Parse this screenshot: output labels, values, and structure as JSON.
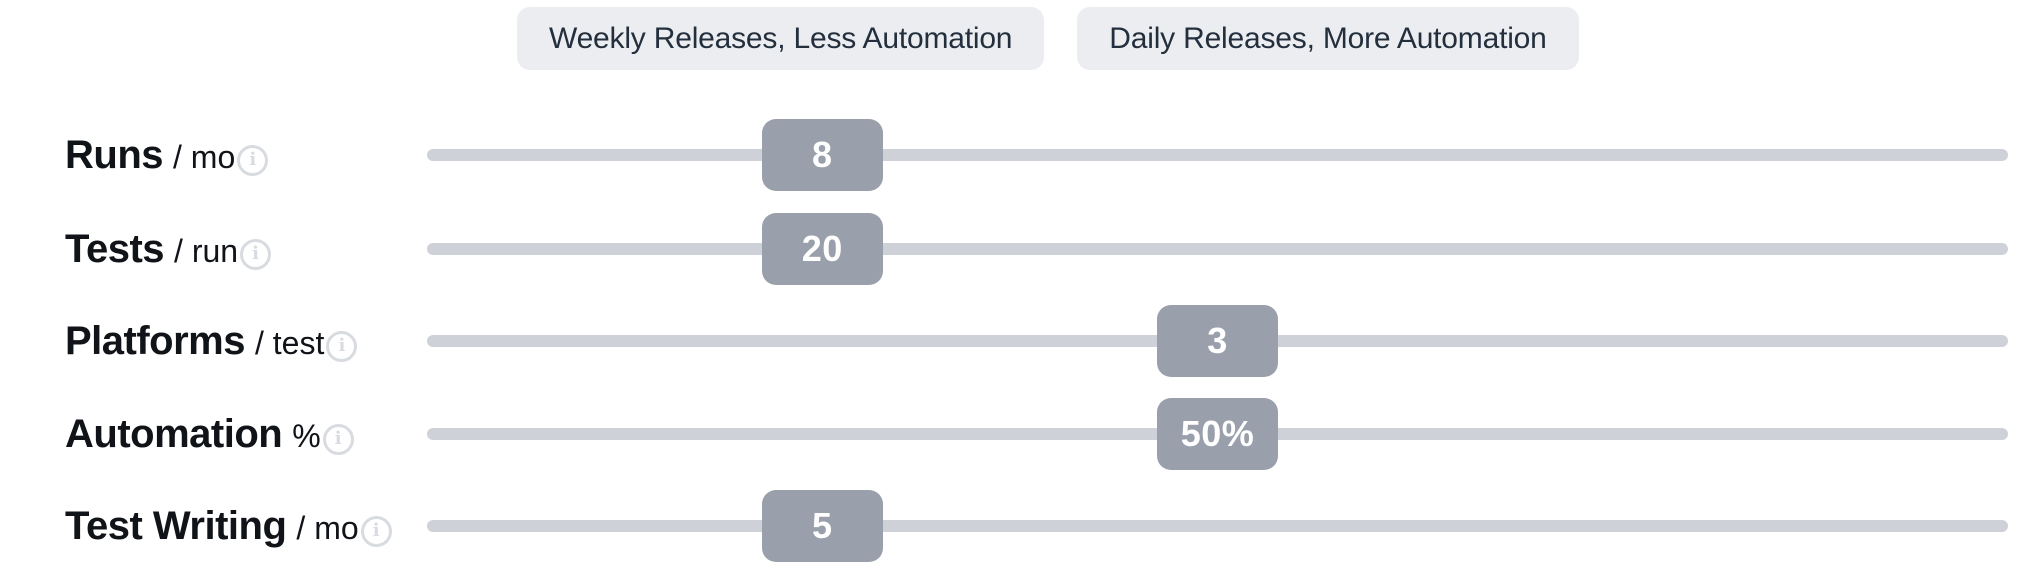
{
  "presets": [
    {
      "label": "Weekly Releases, Less Automation"
    },
    {
      "label": "Daily Releases, More Automation"
    }
  ],
  "sliders": [
    {
      "name": "Runs",
      "unit": "/ mo",
      "value": "8",
      "position_pct": 25
    },
    {
      "name": "Tests",
      "unit": "/ run",
      "value": "20",
      "position_pct": 25
    },
    {
      "name": "Platforms",
      "unit": "/ test",
      "value": "3",
      "position_pct": 50
    },
    {
      "name": "Automation",
      "unit": "%",
      "value": "50%",
      "position_pct": 50
    },
    {
      "name": "Test Writing",
      "unit": "/ mo",
      "value": "5",
      "position_pct": 25
    }
  ],
  "icons": {
    "info": "i"
  },
  "colors": {
    "handle": "#9aa0ab",
    "track": "#ced2d8",
    "button_bg": "#ebedf0",
    "button_text": "#242f3e",
    "label_text": "#101318",
    "info_icon": "#d8dbe0",
    "value_text": "#ffffff"
  }
}
